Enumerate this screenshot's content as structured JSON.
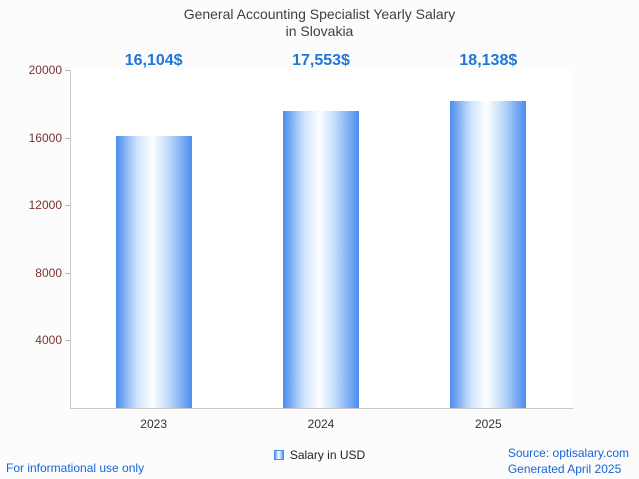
{
  "title": {
    "line1": "General Accounting Specialist Yearly Salary",
    "line2": "in Slovakia"
  },
  "chart_data": {
    "type": "bar",
    "title": "General Accounting Specialist Yearly Salary in Slovakia",
    "categories": [
      "2023",
      "2024",
      "2025"
    ],
    "values": [
      16104,
      17553,
      18138
    ],
    "value_labels": [
      "16,104$",
      "17,553$",
      "18,138$"
    ],
    "series_name": "Salary in USD",
    "xlabel": "",
    "ylabel": "",
    "ylim": [
      0,
      20000
    ],
    "yticks": [
      4000,
      8000,
      12000,
      16000,
      20000
    ],
    "grid": false,
    "legend_position": "bottom-center",
    "bar_edge_color": "#4c8df0",
    "bar_mid_color": "#ffffff"
  },
  "legend": {
    "label": "Salary in USD"
  },
  "footer": {
    "disclaimer": "For informational use only",
    "source": "Source: optisalary.com",
    "generated": "Generated April 2025"
  },
  "colors": {
    "title_text": "#3f3f3f",
    "value_label_text": "#1e77d6",
    "ytick_text": "#773333",
    "xtick_text": "#333333",
    "footer_text": "#1565d8",
    "axis_line": "#c9c9c9"
  }
}
